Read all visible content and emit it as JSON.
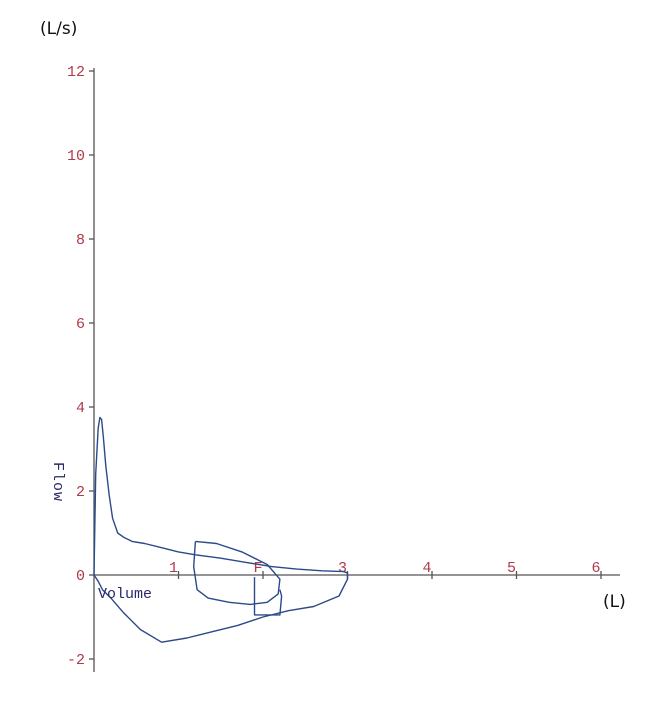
{
  "chart_data": {
    "type": "line",
    "ylabel_unit": "(L/s)",
    "xlabel_unit": "(L)",
    "ylabel": "Flow",
    "xlabel": "Volume",
    "xlim": [
      0,
      6.2
    ],
    "ylim": [
      -2.3,
      12.3
    ],
    "xticks": [
      1,
      2,
      3,
      4,
      5,
      6
    ],
    "xtick_labels": [
      "1",
      "F",
      "3",
      "4",
      "5",
      "6"
    ],
    "yticks": [
      -2,
      0,
      2,
      4,
      6,
      8,
      10,
      12
    ],
    "ytick_labels": [
      "-2",
      "0",
      "2",
      "4",
      "6",
      "8",
      "10",
      "12"
    ],
    "grid": false,
    "colors": {
      "curve": "#2b4a8a",
      "tick_label": "#b03a4a",
      "axis": "#555555"
    },
    "series": [
      {
        "x": [
          0.0,
          0.02,
          0.05,
          0.07,
          0.09,
          0.11,
          0.14,
          0.18,
          0.22,
          0.28,
          0.35,
          0.45,
          0.6,
          0.8,
          1.0,
          1.2,
          1.5,
          1.8,
          2.1,
          2.4,
          2.7,
          2.95,
          3.0,
          3.0,
          2.9,
          2.6,
          2.3,
          2.0,
          1.7,
          1.4,
          1.1,
          0.8,
          0.55,
          0.35,
          0.2,
          0.1,
          0.05,
          0.0
        ],
        "y": [
          0.0,
          2.4,
          3.5,
          3.75,
          3.7,
          3.3,
          2.6,
          1.9,
          1.35,
          1.0,
          0.9,
          0.8,
          0.75,
          0.65,
          0.55,
          0.48,
          0.4,
          0.3,
          0.2,
          0.14,
          0.1,
          0.08,
          0.05,
          -0.1,
          -0.5,
          -0.75,
          -0.85,
          -1.0,
          -1.2,
          -1.35,
          -1.5,
          -1.6,
          -1.3,
          -0.9,
          -0.55,
          -0.35,
          -0.15,
          0.0
        ]
      },
      {
        "x": [
          1.2,
          1.45,
          1.75,
          2.05,
          2.2,
          2.18,
          2.05,
          1.85,
          1.6,
          1.35,
          1.22,
          1.18,
          1.2
        ],
        "y": [
          0.8,
          0.75,
          0.55,
          0.25,
          -0.1,
          -0.45,
          -0.65,
          -0.7,
          -0.65,
          -0.55,
          -0.35,
          0.2,
          0.8
        ]
      },
      {
        "x": [
          1.9,
          1.9,
          2.2,
          2.22,
          2.2
        ],
        "y": [
          -0.05,
          -0.95,
          -0.95,
          -0.5,
          -0.35
        ]
      }
    ]
  }
}
